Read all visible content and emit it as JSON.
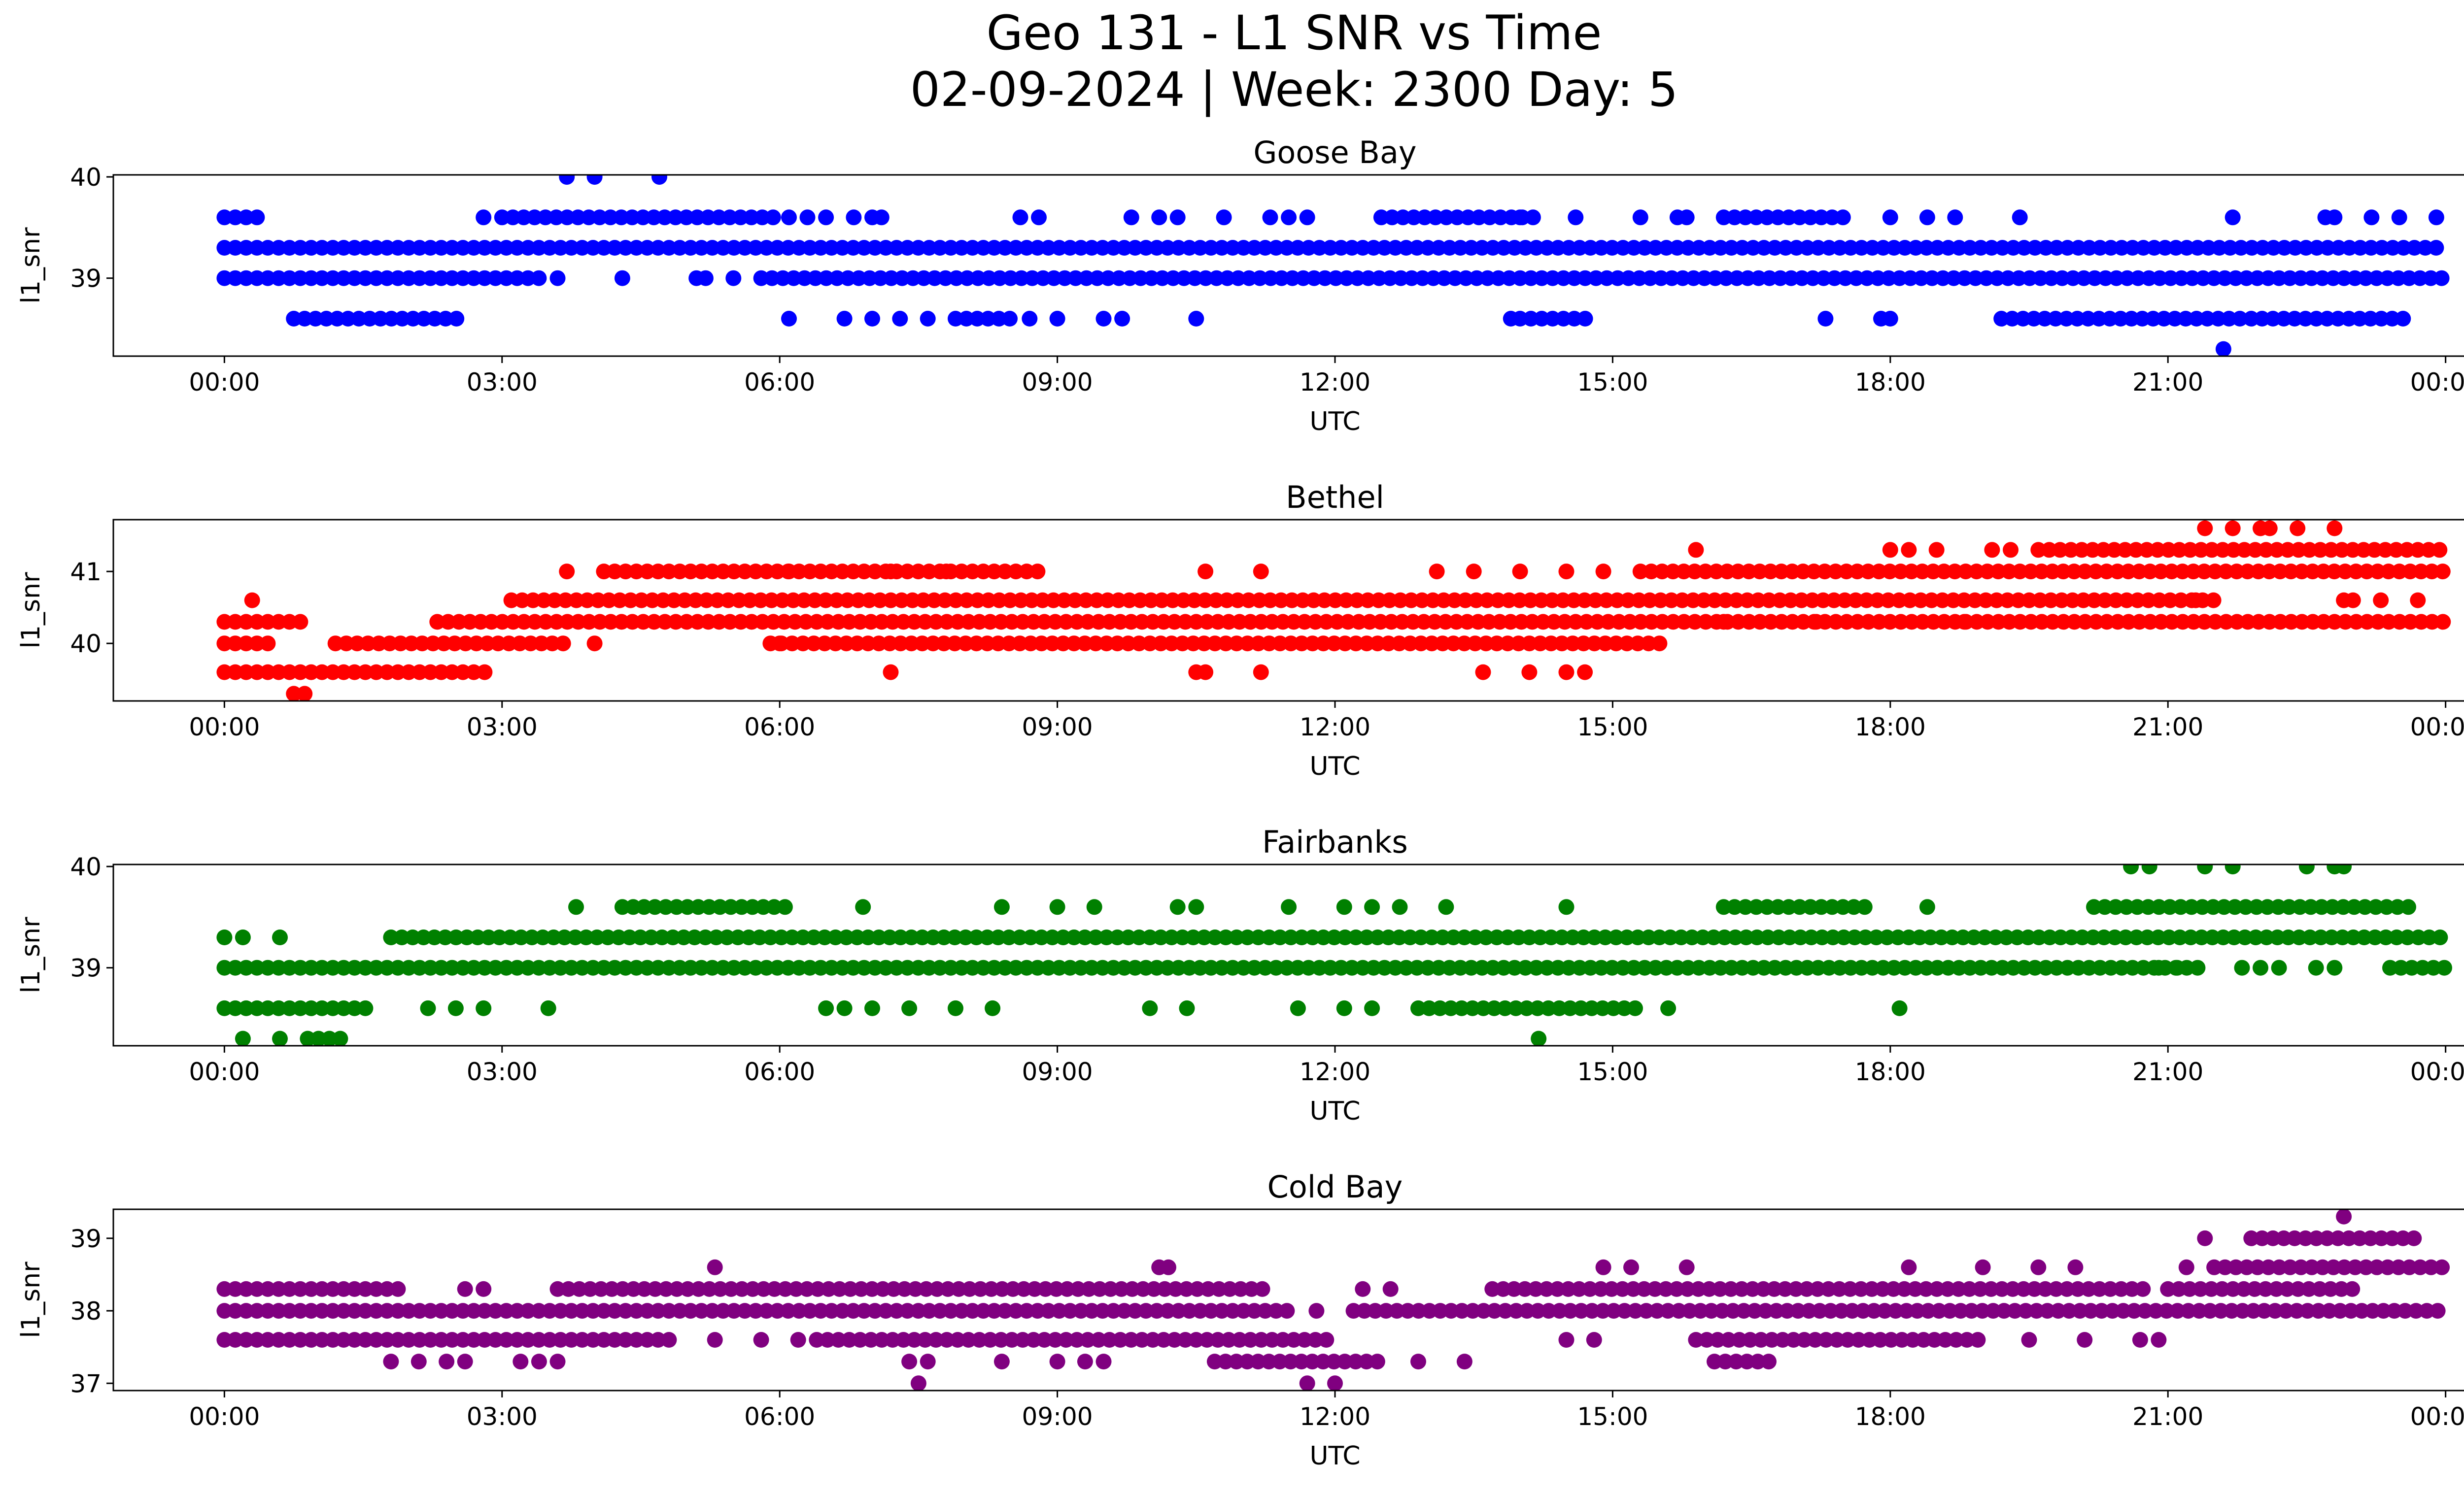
{
  "figure": {
    "title_line1": "Geo 131 - L1 SNR vs Time",
    "title_line2": "02-09-2024 | Week: 2300 Day: 5"
  },
  "chart_data": [
    {
      "type": "scatter",
      "title": "Goose Bay",
      "xlabel": "UTC",
      "ylabel": "l1_snr",
      "color": "#0000ff",
      "x_ticks": [
        "00:00",
        "03:00",
        "06:00",
        "09:00",
        "12:00",
        "15:00",
        "18:00",
        "21:00",
        "00:00"
      ],
      "y_ticks": [
        39,
        40
      ],
      "ylim": [
        38.23,
        40.02
      ],
      "xlim_hours": [
        -1.2,
        25.2
      ],
      "bands": [
        {
          "y": 39.3,
          "segments": [
            [
              0.0,
              24.0
            ]
          ]
        },
        {
          "y": 39.0,
          "segments": [
            [
              0.0,
              3.4
            ],
            [
              5.8,
              24.0
            ]
          ]
        },
        {
          "y": 39.6,
          "segments": [
            [
              0.0,
              0.45
            ],
            [
              3.0,
              6.0
            ],
            [
              12.5,
              14.2
            ],
            [
              16.2,
              17.6
            ],
            [
              21.7,
              21.8
            ]
          ]
        },
        {
          "y": 38.6,
          "segments": [
            [
              0.75,
              2.6
            ],
            [
              7.9,
              8.5
            ],
            [
              14.0,
              14.8
            ],
            [
              19.2,
              21.8
            ],
            [
              21.9,
              23.6
            ]
          ]
        }
      ],
      "points": [
        {
          "x": 3.7,
          "y": 40.0
        },
        {
          "x": 4.0,
          "y": 40.0
        },
        {
          "x": 4.7,
          "y": 40.0
        },
        {
          "x": 2.8,
          "y": 39.6
        },
        {
          "x": 6.1,
          "y": 39.6
        },
        {
          "x": 6.3,
          "y": 39.6
        },
        {
          "x": 6.5,
          "y": 39.6
        },
        {
          "x": 6.8,
          "y": 39.6
        },
        {
          "x": 7.0,
          "y": 39.6
        },
        {
          "x": 7.1,
          "y": 39.6
        },
        {
          "x": 8.6,
          "y": 39.6
        },
        {
          "x": 8.8,
          "y": 39.6
        },
        {
          "x": 9.8,
          "y": 39.6
        },
        {
          "x": 10.1,
          "y": 39.6
        },
        {
          "x": 10.3,
          "y": 39.6
        },
        {
          "x": 10.8,
          "y": 39.6
        },
        {
          "x": 11.3,
          "y": 39.6
        },
        {
          "x": 11.5,
          "y": 39.6
        },
        {
          "x": 11.7,
          "y": 39.6
        },
        {
          "x": 14.0,
          "y": 39.6
        },
        {
          "x": 14.6,
          "y": 39.6
        },
        {
          "x": 15.3,
          "y": 39.6
        },
        {
          "x": 15.7,
          "y": 39.6
        },
        {
          "x": 15.8,
          "y": 39.6
        },
        {
          "x": 18.0,
          "y": 39.6
        },
        {
          "x": 18.4,
          "y": 39.6
        },
        {
          "x": 18.7,
          "y": 39.6
        },
        {
          "x": 19.4,
          "y": 39.6
        },
        {
          "x": 22.7,
          "y": 39.6
        },
        {
          "x": 22.8,
          "y": 39.6
        },
        {
          "x": 23.2,
          "y": 39.6
        },
        {
          "x": 23.5,
          "y": 39.6
        },
        {
          "x": 23.9,
          "y": 39.6
        },
        {
          "x": 3.6,
          "y": 39.0
        },
        {
          "x": 4.3,
          "y": 39.0
        },
        {
          "x": 5.1,
          "y": 39.0
        },
        {
          "x": 5.2,
          "y": 39.0
        },
        {
          "x": 5.5,
          "y": 39.0
        },
        {
          "x": 6.1,
          "y": 38.6
        },
        {
          "x": 6.7,
          "y": 38.6
        },
        {
          "x": 7.0,
          "y": 38.6
        },
        {
          "x": 7.3,
          "y": 38.6
        },
        {
          "x": 7.6,
          "y": 38.6
        },
        {
          "x": 8.7,
          "y": 38.6
        },
        {
          "x": 9.0,
          "y": 38.6
        },
        {
          "x": 9.5,
          "y": 38.6
        },
        {
          "x": 9.7,
          "y": 38.6
        },
        {
          "x": 10.5,
          "y": 38.6
        },
        {
          "x": 13.9,
          "y": 38.6
        },
        {
          "x": 17.3,
          "y": 38.6
        },
        {
          "x": 17.9,
          "y": 38.6
        },
        {
          "x": 18.0,
          "y": 38.6
        },
        {
          "x": 21.6,
          "y": 38.3
        }
      ]
    },
    {
      "type": "scatter",
      "title": "Bethel",
      "xlabel": "UTC",
      "ylabel": "l1_snr",
      "color": "#ff0000",
      "x_ticks": [
        "00:00",
        "03:00",
        "06:00",
        "09:00",
        "12:00",
        "15:00",
        "18:00",
        "21:00",
        "00:00"
      ],
      "y_ticks": [
        40,
        41
      ],
      "ylim": [
        39.2,
        41.72
      ],
      "xlim_hours": [
        -1.2,
        25.2
      ],
      "bands": [
        {
          "y": 40.0,
          "segments": [
            [
              0.0,
              0.5
            ],
            [
              1.2,
              3.7
            ],
            [
              5.9,
              15.6
            ]
          ]
        },
        {
          "y": 40.3,
          "segments": [
            [
              0.0,
              0.9
            ],
            [
              2.3,
              24.0
            ]
          ]
        },
        {
          "y": 40.6,
          "segments": [
            [
              3.1,
              21.6
            ]
          ]
        },
        {
          "y": 41.0,
          "segments": [
            [
              4.1,
              8.9
            ],
            [
              15.3,
              24.0
            ]
          ]
        },
        {
          "y": 41.3,
          "segments": [
            [
              19.6,
              24.0
            ]
          ]
        },
        {
          "y": 39.6,
          "segments": [
            [
              0.0,
              2.9
            ]
          ]
        },
        {
          "y": 39.3,
          "segments": [
            [
              0.75,
              0.9
            ]
          ]
        }
      ],
      "points": [
        {
          "x": 0.3,
          "y": 40.6
        },
        {
          "x": 3.7,
          "y": 41.0
        },
        {
          "x": 6.1,
          "y": 41.0
        },
        {
          "x": 7.2,
          "y": 41.0
        },
        {
          "x": 7.8,
          "y": 41.0
        },
        {
          "x": 10.6,
          "y": 41.0
        },
        {
          "x": 11.2,
          "y": 41.0
        },
        {
          "x": 13.1,
          "y": 41.0
        },
        {
          "x": 13.5,
          "y": 41.0
        },
        {
          "x": 14.0,
          "y": 41.0
        },
        {
          "x": 14.5,
          "y": 41.0
        },
        {
          "x": 14.9,
          "y": 41.0
        },
        {
          "x": 15.9,
          "y": 41.3
        },
        {
          "x": 18.0,
          "y": 41.3
        },
        {
          "x": 18.2,
          "y": 41.3
        },
        {
          "x": 18.5,
          "y": 41.3
        },
        {
          "x": 19.1,
          "y": 41.3
        },
        {
          "x": 19.3,
          "y": 41.3
        },
        {
          "x": 21.4,
          "y": 41.6
        },
        {
          "x": 21.7,
          "y": 41.6
        },
        {
          "x": 22.1,
          "y": 41.6
        },
        {
          "x": 22.4,
          "y": 41.6
        },
        {
          "x": 22.8,
          "y": 41.6
        },
        {
          "x": 22.0,
          "y": 41.6
        },
        {
          "x": 21.3,
          "y": 40.6
        },
        {
          "x": 22.9,
          "y": 40.6
        },
        {
          "x": 23.0,
          "y": 40.6
        },
        {
          "x": 23.3,
          "y": 40.6
        },
        {
          "x": 23.7,
          "y": 40.6
        },
        {
          "x": 4.0,
          "y": 40.0
        },
        {
          "x": 6.0,
          "y": 40.0
        },
        {
          "x": 7.2,
          "y": 39.6
        },
        {
          "x": 10.5,
          "y": 39.6
        },
        {
          "x": 10.6,
          "y": 39.6
        },
        {
          "x": 11.2,
          "y": 39.6
        },
        {
          "x": 13.6,
          "y": 39.6
        },
        {
          "x": 14.1,
          "y": 39.6
        },
        {
          "x": 14.5,
          "y": 39.6
        },
        {
          "x": 14.7,
          "y": 39.6
        },
        {
          "x": 16.2,
          "y": 40.3
        },
        {
          "x": 17.2,
          "y": 40.3
        },
        {
          "x": 18.8,
          "y": 40.3
        }
      ]
    },
    {
      "type": "scatter",
      "title": "Fairbanks",
      "xlabel": "UTC",
      "ylabel": "l1_snr",
      "color": "#008000",
      "x_ticks": [
        "00:00",
        "03:00",
        "06:00",
        "09:00",
        "12:00",
        "15:00",
        "18:00",
        "21:00",
        "00:00"
      ],
      "y_ticks": [
        39,
        40
      ],
      "ylim": [
        38.23,
        40.02
      ],
      "xlim_hours": [
        -1.2,
        25.2
      ],
      "bands": [
        {
          "y": 39.0,
          "segments": [
            [
              0.0,
              21.4
            ],
            [
              23.4,
              24.0
            ]
          ]
        },
        {
          "y": 39.3,
          "segments": [
            [
              1.8,
              24.0
            ]
          ]
        },
        {
          "y": 38.6,
          "segments": [
            [
              0.0,
              1.6
            ],
            [
              12.9,
              15.3
            ]
          ]
        },
        {
          "y": 39.6,
          "segments": [
            [
              4.3,
              6.1
            ],
            [
              16.2,
              17.8
            ],
            [
              20.2,
              23.6
            ]
          ]
        },
        {
          "y": 38.3,
          "segments": [
            [
              0.9,
              1.3
            ]
          ]
        }
      ],
      "points": [
        {
          "x": 0.0,
          "y": 39.3
        },
        {
          "x": 0.2,
          "y": 39.3
        },
        {
          "x": 0.6,
          "y": 39.3
        },
        {
          "x": 0.2,
          "y": 38.3
        },
        {
          "x": 0.6,
          "y": 38.3
        },
        {
          "x": 3.8,
          "y": 39.6
        },
        {
          "x": 6.9,
          "y": 39.6
        },
        {
          "x": 8.4,
          "y": 39.6
        },
        {
          "x": 9.0,
          "y": 39.6
        },
        {
          "x": 9.4,
          "y": 39.6
        },
        {
          "x": 10.3,
          "y": 39.6
        },
        {
          "x": 10.5,
          "y": 39.6
        },
        {
          "x": 11.5,
          "y": 39.6
        },
        {
          "x": 12.1,
          "y": 39.6
        },
        {
          "x": 12.4,
          "y": 39.6
        },
        {
          "x": 12.7,
          "y": 39.6
        },
        {
          "x": 13.2,
          "y": 39.6
        },
        {
          "x": 14.5,
          "y": 39.6
        },
        {
          "x": 18.4,
          "y": 39.6
        },
        {
          "x": 20.6,
          "y": 40.0
        },
        {
          "x": 20.8,
          "y": 40.0
        },
        {
          "x": 21.4,
          "y": 40.0
        },
        {
          "x": 21.7,
          "y": 40.0
        },
        {
          "x": 22.5,
          "y": 40.0
        },
        {
          "x": 22.8,
          "y": 40.0
        },
        {
          "x": 22.9,
          "y": 40.0
        },
        {
          "x": 2.2,
          "y": 38.6
        },
        {
          "x": 2.5,
          "y": 38.6
        },
        {
          "x": 2.8,
          "y": 38.6
        },
        {
          "x": 3.5,
          "y": 38.6
        },
        {
          "x": 6.5,
          "y": 38.6
        },
        {
          "x": 6.7,
          "y": 38.6
        },
        {
          "x": 7.0,
          "y": 38.6
        },
        {
          "x": 7.4,
          "y": 38.6
        },
        {
          "x": 7.9,
          "y": 38.6
        },
        {
          "x": 8.3,
          "y": 38.6
        },
        {
          "x": 10.0,
          "y": 38.6
        },
        {
          "x": 10.4,
          "y": 38.6
        },
        {
          "x": 11.6,
          "y": 38.6
        },
        {
          "x": 12.1,
          "y": 38.6
        },
        {
          "x": 12.4,
          "y": 38.6
        },
        {
          "x": 15.6,
          "y": 38.6
        },
        {
          "x": 18.1,
          "y": 38.6
        },
        {
          "x": 14.2,
          "y": 38.3
        },
        {
          "x": 20.9,
          "y": 39.0
        },
        {
          "x": 21.1,
          "y": 39.0
        },
        {
          "x": 21.8,
          "y": 39.0
        },
        {
          "x": 22.0,
          "y": 39.0
        },
        {
          "x": 22.2,
          "y": 39.0
        },
        {
          "x": 22.6,
          "y": 39.0
        },
        {
          "x": 22.8,
          "y": 39.0
        }
      ]
    },
    {
      "type": "scatter",
      "title": "Cold Bay",
      "xlabel": "UTC",
      "ylabel": "l1_snr",
      "color": "#800080",
      "x_ticks": [
        "00:00",
        "03:00",
        "06:00",
        "09:00",
        "12:00",
        "15:00",
        "18:00",
        "21:00",
        "00:00"
      ],
      "y_ticks": [
        37,
        38,
        39
      ],
      "ylim": [
        36.9,
        39.4
      ],
      "xlim_hours": [
        -1.2,
        25.2
      ],
      "bands": [
        {
          "y": 38.0,
          "segments": [
            [
              0.0,
              11.5
            ],
            [
              12.2,
              24.0
            ]
          ]
        },
        {
          "y": 38.3,
          "segments": [
            [
              0.0,
              1.9
            ],
            [
              3.6,
              11.3
            ],
            [
              13.7,
              20.8
            ],
            [
              21.0,
              23.1
            ]
          ]
        },
        {
          "y": 37.6,
          "segments": [
            [
              0.0,
              4.9
            ],
            [
              6.4,
              12.0
            ],
            [
              15.9,
              19.0
            ]
          ]
        },
        {
          "y": 38.6,
          "segments": [
            [
              21.5,
              24.0
            ]
          ]
        },
        {
          "y": 39.0,
          "segments": [
            [
              21.9,
              23.7
            ]
          ]
        },
        {
          "y": 37.3,
          "segments": [
            [
              10.7,
              12.5
            ],
            [
              16.1,
              16.8
            ]
          ]
        }
      ],
      "points": [
        {
          "x": 5.3,
          "y": 38.6
        },
        {
          "x": 10.1,
          "y": 38.6
        },
        {
          "x": 10.2,
          "y": 38.6
        },
        {
          "x": 14.9,
          "y": 38.6
        },
        {
          "x": 15.2,
          "y": 38.6
        },
        {
          "x": 15.8,
          "y": 38.6
        },
        {
          "x": 18.2,
          "y": 38.6
        },
        {
          "x": 19.0,
          "y": 38.6
        },
        {
          "x": 19.6,
          "y": 38.6
        },
        {
          "x": 20.0,
          "y": 38.6
        },
        {
          "x": 21.2,
          "y": 38.6
        },
        {
          "x": 21.4,
          "y": 39.0
        },
        {
          "x": 22.9,
          "y": 39.3
        },
        {
          "x": 1.8,
          "y": 37.3
        },
        {
          "x": 2.1,
          "y": 37.3
        },
        {
          "x": 2.4,
          "y": 37.3
        },
        {
          "x": 2.6,
          "y": 37.3
        },
        {
          "x": 3.2,
          "y": 37.3
        },
        {
          "x": 3.4,
          "y": 37.3
        },
        {
          "x": 3.6,
          "y": 37.3
        },
        {
          "x": 7.4,
          "y": 37.3
        },
        {
          "x": 7.6,
          "y": 37.3
        },
        {
          "x": 8.4,
          "y": 37.3
        },
        {
          "x": 9.0,
          "y": 37.3
        },
        {
          "x": 9.3,
          "y": 37.3
        },
        {
          "x": 9.5,
          "y": 37.3
        },
        {
          "x": 12.9,
          "y": 37.3
        },
        {
          "x": 13.4,
          "y": 37.3
        },
        {
          "x": 7.5,
          "y": 37.0
        },
        {
          "x": 11.7,
          "y": 37.0
        },
        {
          "x": 12.0,
          "y": 37.0
        },
        {
          "x": 5.3,
          "y": 37.6
        },
        {
          "x": 5.8,
          "y": 37.6
        },
        {
          "x": 6.2,
          "y": 37.6
        },
        {
          "x": 14.5,
          "y": 37.6
        },
        {
          "x": 14.8,
          "y": 37.6
        },
        {
          "x": 19.5,
          "y": 37.6
        },
        {
          "x": 20.1,
          "y": 37.6
        },
        {
          "x": 20.7,
          "y": 37.6
        },
        {
          "x": 20.9,
          "y": 37.6
        },
        {
          "x": 11.8,
          "y": 38.0
        },
        {
          "x": 2.6,
          "y": 38.3
        },
        {
          "x": 2.8,
          "y": 38.3
        },
        {
          "x": 12.3,
          "y": 38.3
        },
        {
          "x": 12.6,
          "y": 38.3
        }
      ]
    }
  ]
}
